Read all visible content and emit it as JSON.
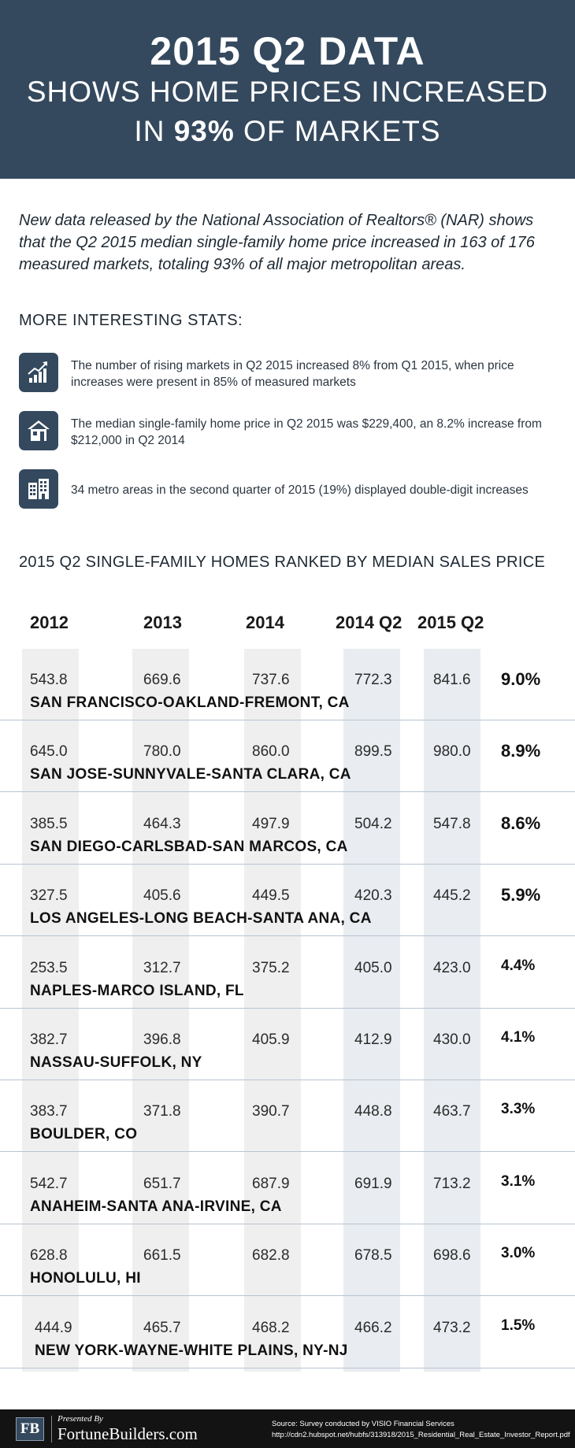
{
  "header": {
    "line1": "2015 Q2 DATA",
    "line2": "SHOWS HOME PRICES INCREASED",
    "line3_pre": "IN ",
    "line3_bold": "93%",
    "line3_post": " OF MARKETS"
  },
  "intro": "New data released by the National Association of Realtors® (NAR) shows that the Q2 2015 median single-family home price increased in 163 of 176 measured markets, totaling 93% of all major metropolitan areas.",
  "stats": {
    "title": "MORE INTERESTING STATS:",
    "items": [
      {
        "icon": "rising-chart-icon",
        "text": "The number of rising markets in Q2 2015 increased 8% from Q1 2015, when price increases were present in 85% of measured markets"
      },
      {
        "icon": "house-icon",
        "text": "The median single-family home price in Q2 2015 was $229,400, an 8.2% increase from $212,000 in Q2 2014"
      },
      {
        "icon": "buildings-icon",
        "text": "34 metro areas in the second quarter of 2015 (19%) displayed double-digit increases"
      }
    ]
  },
  "ranking": {
    "title": "2015 Q2 SINGLE-FAMILY HOMES RANKED BY MEDIAN SALES PRICE",
    "columns": [
      "2012",
      "2013",
      "2014",
      "2014 Q2",
      "2015 Q2"
    ],
    "rows": [
      {
        "v": [
          "543.8",
          "669.6",
          "737.6",
          "772.3",
          "841.6"
        ],
        "pct": "9.0%",
        "city": "SAN FRANCISCO-OAKLAND-FREMONT, CA"
      },
      {
        "v": [
          "645.0",
          "780.0",
          "860.0",
          "899.5",
          "980.0"
        ],
        "pct": "8.9%",
        "city": "SAN JOSE-SUNNYVALE-SANTA CLARA, CA"
      },
      {
        "v": [
          "385.5",
          "464.3",
          "497.9",
          "504.2",
          "547.8"
        ],
        "pct": "8.6%",
        "city": "SAN DIEGO-CARLSBAD-SAN MARCOS, CA"
      },
      {
        "v": [
          "327.5",
          "405.6",
          "449.5",
          "420.3",
          "445.2"
        ],
        "pct": "5.9%",
        "city": "LOS ANGELES-LONG BEACH-SANTA ANA, CA"
      },
      {
        "v": [
          "253.5",
          "312.7",
          "375.2",
          "405.0",
          "423.0"
        ],
        "pct": "4.4%",
        "city": "NAPLES-MARCO ISLAND, FL"
      },
      {
        "v": [
          "382.7",
          "396.8",
          "405.9",
          "412.9",
          "430.0"
        ],
        "pct": "4.1%",
        "city": "NASSAU-SUFFOLK, NY"
      },
      {
        "v": [
          "383.7",
          "371.8",
          "390.7",
          "448.8",
          "463.7"
        ],
        "pct": "3.3%",
        "city": "BOULDER, CO"
      },
      {
        "v": [
          "542.7",
          "651.7",
          "687.9",
          "691.9",
          "713.2"
        ],
        "pct": "3.1%",
        "city": "ANAHEIM-SANTA ANA-IRVINE, CA"
      },
      {
        "v": [
          "628.8",
          "661.5",
          "682.8",
          "678.5",
          "698.6"
        ],
        "pct": "3.0%",
        "city": "HONOLULU, HI"
      },
      {
        "v": [
          "444.9",
          "465.7",
          "468.2",
          "466.2",
          "473.2"
        ],
        "pct": "1.5%",
        "city": "NEW YORK-WAYNE-WHITE PLAINS, NY-NJ"
      }
    ]
  },
  "footer": {
    "logo": "FB",
    "presented": "Presented By",
    "brand": "FortuneBuilders.com",
    "source_line1": "Source: Survey conducted by VISIO Financial Services",
    "source_line2": "http://cdn2.hubspot.net/hubfs/313918/2015_Residential_Real_Estate_Investor_Report.pdf"
  }
}
